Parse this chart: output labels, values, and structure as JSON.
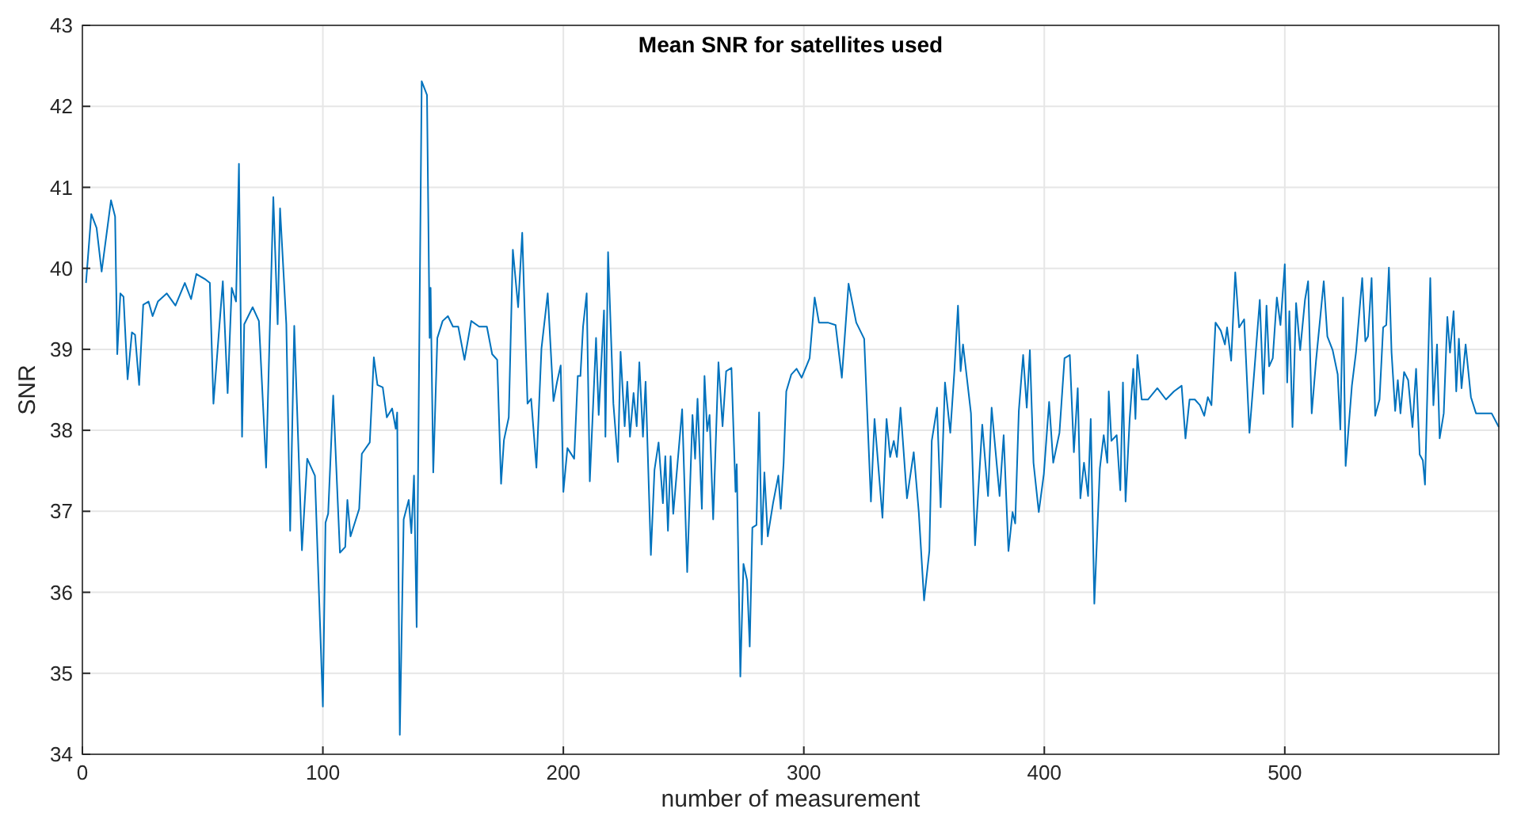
{
  "chart_data": {
    "type": "line",
    "title": "Mean SNR for satellites used",
    "xlabel": "number of measurement",
    "ylabel": "SNR",
    "xlim": [
      0,
      589
    ],
    "ylim": [
      34,
      43
    ],
    "xticks": [
      0,
      100,
      200,
      300,
      400,
      500
    ],
    "yticks": [
      34,
      35,
      36,
      37,
      38,
      39,
      40,
      41,
      42,
      43
    ],
    "grid": true,
    "marker": "none",
    "line_style": "solid",
    "series": [
      {
        "color": "#0072bd",
        "x": [
          1.5,
          3.7,
          5.9,
          8,
          11.9,
          13.6,
          14.5,
          15.8,
          17.1,
          18.8,
          20.6,
          21.9,
          23.6,
          25.3,
          27.5,
          29.2,
          31.4,
          35.1,
          38.7,
          42.6,
          45.2,
          47.4,
          51.3,
          53,
          54.5,
          58.4,
          60.4,
          62.1,
          63.9,
          65.1,
          66.4,
          67.3,
          70.8,
          73.4,
          76.4,
          79.4,
          81.2,
          82.2,
          84.8,
          86.4,
          88.1,
          91.3,
          93.5,
          96.7,
          100,
          101.1,
          102.2,
          104.3,
          107.1,
          109.3,
          110.2,
          111.5,
          115.1,
          116.2,
          119.5,
          121.2,
          122.7,
          124.9,
          126.6,
          128.8,
          130.3,
          130.9,
          132,
          133.6,
          135.7,
          136.8,
          137.9,
          139,
          141.1,
          143.3,
          144.4,
          144.8,
          145.9,
          147.6,
          149.8,
          152,
          154.1,
          156.3,
          158.9,
          161.7,
          165,
          168.2,
          170.4,
          172.5,
          174.1,
          175.3,
          177.3,
          179,
          181.2,
          182.9,
          185.1,
          186.6,
          188.8,
          190.9,
          193.5,
          195.9,
          197.4,
          198.9,
          200,
          201.7,
          204.5,
          206,
          207.1,
          208.2,
          209.7,
          211,
          213.6,
          214.7,
          216.9,
          217.5,
          218.6,
          220.8,
          222.7,
          223.8,
          225.5,
          226.6,
          227.7,
          229.2,
          230.5,
          231.6,
          233.1,
          234.2,
          236.4,
          237.9,
          239.6,
          241.4,
          242.4,
          243.5,
          244.6,
          245.7,
          249.4,
          251.5,
          253.7,
          254.8,
          255.8,
          257.6,
          258.7,
          259.8,
          260.8,
          262.3,
          264.5,
          266.2,
          267.7,
          269.9,
          271.6,
          272.1,
          273.6,
          274.9,
          276.4,
          277.5,
          278.6,
          280.3,
          281.4,
          282.5,
          283.6,
          285,
          287.2,
          289.4,
          290.4,
          291.6,
          292.7,
          294.8,
          297,
          299.1,
          302.4,
          304.5,
          306.3,
          310,
          313.2,
          315.8,
          318.6,
          321.8,
          325.1,
          327.9,
          329.4,
          332.7,
          334.4,
          335.9,
          337.4,
          338.7,
          340.2,
          342.9,
          345.7,
          347.8,
          350,
          352.2,
          353.2,
          355.4,
          356.9,
          358.7,
          360.9,
          362.6,
          364.1,
          365.2,
          366.2,
          369.5,
          371.2,
          374.2,
          376.6,
          378.1,
          381.4,
          383.1,
          385.1,
          386.8,
          387.9,
          389.4,
          391.2,
          392.7,
          394,
          395.5,
          397.7,
          399.8,
          402,
          403.7,
          406.3,
          408.4,
          410.6,
          412.3,
          413.9,
          415,
          416.5,
          418.2,
          419.3,
          420.8,
          423.1,
          424.7,
          426.2,
          426.8,
          427.9,
          430.1,
          431.6,
          432.7,
          433.8,
          435.5,
          437,
          437.9,
          438.7,
          440.5,
          443.1,
          447,
          450.6,
          453.9,
          457.1,
          458.7,
          460.4,
          462.6,
          464.7,
          466.5,
          468,
          469.5,
          471.2,
          473.4,
          475.1,
          476,
          477.7,
          479.4,
          481,
          483.1,
          485.3,
          487.4,
          489.6,
          491.1,
          492.4,
          493.5,
          495,
          496.7,
          498.2,
          500,
          501,
          501.9,
          503.2,
          504.7,
          506.4,
          508.4,
          509.7,
          511.2,
          513,
          514.9,
          516.2,
          517.7,
          519.9,
          522,
          523.1,
          524.2,
          525.3,
          527.9,
          529.6,
          532.2,
          533.5,
          534.6,
          536.1,
          537.6,
          539.4,
          540.9,
          542.2,
          543.3,
          544.4,
          545.9,
          547,
          548.1,
          549.6,
          551.3,
          553.1,
          554.6,
          556.1,
          557.4,
          558.3,
          560.5,
          561.8,
          563.3,
          564.4,
          566.1,
          567.6,
          568.7,
          570.2,
          571.3,
          572.4,
          573.5,
          575.2,
          577.4,
          579.5,
          582.8,
          586,
          589
        ],
        "values": [
          39.82,
          40.67,
          40.5,
          39.96,
          40.84,
          40.64,
          38.94,
          39.69,
          39.65,
          38.63,
          39.21,
          39.18,
          38.56,
          39.55,
          39.59,
          39.41,
          39.59,
          39.69,
          39.54,
          39.82,
          39.62,
          39.93,
          39.86,
          39.82,
          38.33,
          39.84,
          38.46,
          39.76,
          39.59,
          41.29,
          37.92,
          39.31,
          39.52,
          39.35,
          37.54,
          40.88,
          39.31,
          40.74,
          39.31,
          36.76,
          39.29,
          36.52,
          37.65,
          37.44,
          34.59,
          36.86,
          36.97,
          38.43,
          36.49,
          36.56,
          37.14,
          36.69,
          37.03,
          37.71,
          37.85,
          38.9,
          38.56,
          38.53,
          38.16,
          38.27,
          38.02,
          38.22,
          34.24,
          36.9,
          37.14,
          36.73,
          37.44,
          35.57,
          42.31,
          42.14,
          39.14,
          39.76,
          37.48,
          39.14,
          39.35,
          39.41,
          39.28,
          39.28,
          38.87,
          39.35,
          39.28,
          39.28,
          38.94,
          38.87,
          37.34,
          37.88,
          38.16,
          40.23,
          39.52,
          40.44,
          38.33,
          38.39,
          37.54,
          39.01,
          39.69,
          38.36,
          38.6,
          38.8,
          37.24,
          37.78,
          37.65,
          38.67,
          38.67,
          39.28,
          39.69,
          37.37,
          39.14,
          38.19,
          39.48,
          37.92,
          40.2,
          38.33,
          37.61,
          38.97,
          38.05,
          38.6,
          37.92,
          38.46,
          38.05,
          38.84,
          37.92,
          38.6,
          36.46,
          37.51,
          37.85,
          37.1,
          37.68,
          36.76,
          37.68,
          36.97,
          38.26,
          36.25,
          38.19,
          37.65,
          38.39,
          37.03,
          38.67,
          37.99,
          38.19,
          36.9,
          38.84,
          38.05,
          38.73,
          38.77,
          37.24,
          37.58,
          34.96,
          36.35,
          36.15,
          35.33,
          36.8,
          36.83,
          38.22,
          36.59,
          37.48,
          36.69,
          37.1,
          37.44,
          37.03,
          37.6,
          38.48,
          38.69,
          38.76,
          38.65,
          38.89,
          39.64,
          39.33,
          39.33,
          39.3,
          38.65,
          39.81,
          39.33,
          39.13,
          37.12,
          38.14,
          36.92,
          38.14,
          37.67,
          37.87,
          37.67,
          38.28,
          37.16,
          37.73,
          36.99,
          35.9,
          36.51,
          37.87,
          38.28,
          37.05,
          38.59,
          37.97,
          38.73,
          39.54,
          38.73,
          39.06,
          38.21,
          36.58,
          38.07,
          37.19,
          38.28,
          37.19,
          37.94,
          36.51,
          36.99,
          36.85,
          38.24,
          38.93,
          38.28,
          38.99,
          37.6,
          36.99,
          37.46,
          38.35,
          37.6,
          37.97,
          38.89,
          38.93,
          37.73,
          38.52,
          37.16,
          37.6,
          37.19,
          38.14,
          35.86,
          37.53,
          37.94,
          37.6,
          38.48,
          37.87,
          37.94,
          37.26,
          38.59,
          37.12,
          38.14,
          38.76,
          38.14,
          38.93,
          38.38,
          38.38,
          38.52,
          38.38,
          38.48,
          38.55,
          37.9,
          38.38,
          38.38,
          38.31,
          38.18,
          38.41,
          38.31,
          39.33,
          39.23,
          39.06,
          39.27,
          38.86,
          39.95,
          39.27,
          39.37,
          37.97,
          38.76,
          39.61,
          38.45,
          39.54,
          38.79,
          38.89,
          39.64,
          39.3,
          40.05,
          38.59,
          39.47,
          38.04,
          39.57,
          38.99,
          39.61,
          39.84,
          38.21,
          38.86,
          39.44,
          39.84,
          39.16,
          38.99,
          38.69,
          38.01,
          39.64,
          37.56,
          38.55,
          38.96,
          39.88,
          39.1,
          39.16,
          39.88,
          38.18,
          38.38,
          39.27,
          39.3,
          40.01,
          38.96,
          38.24,
          38.62,
          38.21,
          38.72,
          38.62,
          38.04,
          38.76,
          37.7,
          37.63,
          37.33,
          39.88,
          38.31,
          39.06,
          37.9,
          38.21,
          39.4,
          38.96,
          39.47,
          38.48,
          39.13,
          38.52,
          39.06,
          38.41,
          38.21,
          38.21,
          38.21,
          38.04
        ]
      }
    ]
  }
}
